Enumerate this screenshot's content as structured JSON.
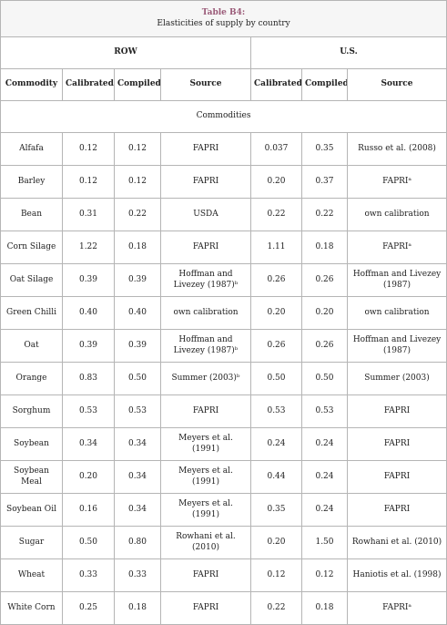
{
  "header": {
    "label": "Table B4:",
    "caption": "Elasticities of supply by country"
  },
  "table": {
    "groups": [
      "ROW",
      "U.S."
    ],
    "columns": [
      "Commodity",
      "Calibrated",
      "Compiled",
      "Source",
      "Calibrated",
      "Compiled",
      "Source"
    ],
    "section": "Commodities",
    "rows": [
      [
        "Alfafa",
        "0.12",
        "0.12",
        "FAPRI",
        "0.037",
        "0.35",
        "Russo et al. (2008)"
      ],
      [
        "Barley",
        "0.12",
        "0.12",
        "FAPRI",
        "0.20",
        "0.37",
        "FAPRIᵃ"
      ],
      [
        "Bean",
        "0.31",
        "0.22",
        "USDA",
        "0.22",
        "0.22",
        "own calibration"
      ],
      [
        "Corn Silage",
        "1.22",
        "0.18",
        "FAPRI",
        "1.11",
        "0.18",
        "FAPRIᵃ"
      ],
      [
        "Oat Silage",
        "0.39",
        "0.39",
        "Hoffman and Livezey (1987)ᵇ",
        "0.26",
        "0.26",
        "Hoffman and Livezey (1987)"
      ],
      [
        "Green Chilli",
        "0.40",
        "0.40",
        "own calibration",
        "0.20",
        "0.20",
        "own calibration"
      ],
      [
        "Oat",
        "0.39",
        "0.39",
        "Hoffman and Livezey (1987)ᵇ",
        "0.26",
        "0.26",
        "Hoffman and Livezey (1987)"
      ],
      [
        "Orange",
        "0.83",
        "0.50",
        "Summer (2003)ᵇ",
        "0.50",
        "0.50",
        "Summer (2003)"
      ],
      [
        "Sorghum",
        "0.53",
        "0.53",
        "FAPRI",
        "0.53",
        "0.53",
        "FAPRI"
      ],
      [
        "Soybean",
        "0.34",
        "0.34",
        "Meyers et al. (1991)",
        "0.24",
        "0.24",
        "FAPRI"
      ],
      [
        "Soybean Meal",
        "0.20",
        "0.34",
        "Meyers et al. (1991)",
        "0.44",
        "0.24",
        "FAPRI"
      ],
      [
        "Soybean Oil",
        "0.16",
        "0.34",
        "Meyers et al. (1991)",
        "0.35",
        "0.24",
        "FAPRI"
      ],
      [
        "Sugar",
        "0.50",
        "0.80",
        "Rowhani et al. (2010)",
        "0.20",
        "1.50",
        "Rowhani et al. (2010)"
      ],
      [
        "Wheat",
        "0.33",
        "0.33",
        "FAPRI",
        "0.12",
        "0.12",
        "Haniotis et al. (1998)"
      ],
      [
        "White Corn",
        "0.25",
        "0.18",
        "FAPRI",
        "0.22",
        "0.18",
        "FAPRIᵃ"
      ]
    ]
  }
}
